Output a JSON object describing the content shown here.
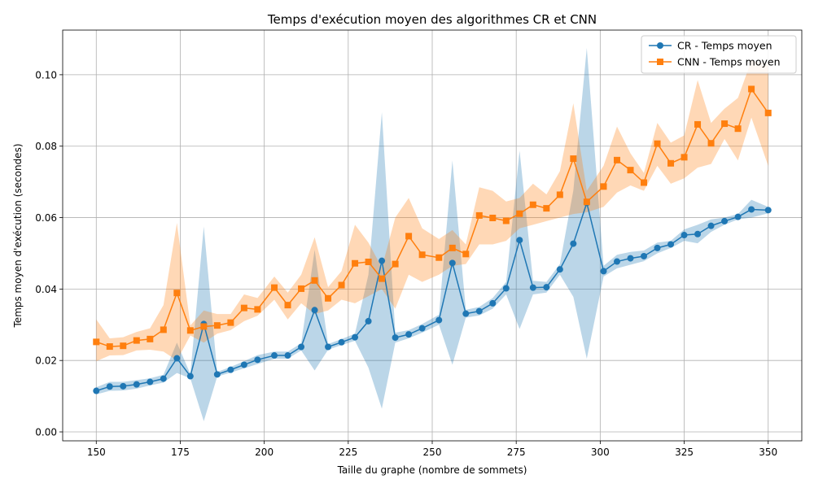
{
  "chart_data": {
    "type": "line",
    "title": "Temps d'exécution moyen des algorithmes CR et CNN",
    "xlabel": "Taille du graphe (nombre de sommets)",
    "ylabel": "Temps moyen d'exécution (secondes)",
    "xlim": [
      140,
      360
    ],
    "ylim": [
      -0.0025,
      0.1125
    ],
    "xticks": [
      150,
      175,
      200,
      225,
      250,
      275,
      300,
      325,
      350
    ],
    "yticks": [
      0.0,
      0.02,
      0.04,
      0.06,
      0.08,
      0.1
    ],
    "ytick_labels": [
      "0.00",
      "0.02",
      "0.04",
      "0.06",
      "0.08",
      "0.10"
    ],
    "grid": true,
    "legend_position": "top-right",
    "x": [
      150,
      154,
      158,
      162,
      166,
      170,
      174,
      178,
      182,
      186,
      190,
      194,
      198,
      203,
      207,
      211,
      215,
      219,
      223,
      227,
      231,
      235,
      239,
      243,
      247,
      252,
      256,
      260,
      264,
      268,
      272,
      276,
      280,
      284,
      288,
      292,
      296,
      301,
      305,
      309,
      313,
      317,
      321,
      325,
      329,
      333,
      337,
      341,
      345,
      350
    ],
    "series": [
      {
        "name": "CR - Temps moyen",
        "color": "#1f77b4",
        "marker": "circle",
        "values": [
          0.0115,
          0.0127,
          0.0128,
          0.0133,
          0.014,
          0.0149,
          0.0206,
          0.0156,
          0.0302,
          0.0161,
          0.0174,
          0.0188,
          0.0202,
          0.0214,
          0.0214,
          0.0238,
          0.0341,
          0.0238,
          0.0251,
          0.0265,
          0.031,
          0.0479,
          0.0264,
          0.0273,
          0.029,
          0.0313,
          0.0473,
          0.0331,
          0.0338,
          0.036,
          0.0402,
          0.0537,
          0.0404,
          0.0405,
          0.0455,
          0.0527,
          0.0641,
          0.045,
          0.0477,
          0.0486,
          0.0492,
          0.0515,
          0.0525,
          0.0551,
          0.0554,
          0.0577,
          0.059,
          0.0602,
          0.0623,
          0.0621
        ],
        "band_lower": [
          0.0105,
          0.0115,
          0.0116,
          0.0121,
          0.013,
          0.0138,
          0.0165,
          0.015,
          0.003,
          0.0155,
          0.0166,
          0.0178,
          0.019,
          0.0205,
          0.0205,
          0.0228,
          0.0172,
          0.023,
          0.0243,
          0.0255,
          0.018,
          0.0065,
          0.025,
          0.0262,
          0.0278,
          0.03,
          0.0188,
          0.032,
          0.0326,
          0.0345,
          0.0385,
          0.0288,
          0.0385,
          0.039,
          0.044,
          0.0378,
          0.0205,
          0.0435,
          0.0458,
          0.0468,
          0.0478,
          0.05,
          0.0515,
          0.0535,
          0.0528,
          0.056,
          0.058,
          0.0595,
          0.06,
          0.0612
        ],
        "band_upper": [
          0.0125,
          0.014,
          0.014,
          0.0145,
          0.015,
          0.016,
          0.025,
          0.0162,
          0.0575,
          0.0168,
          0.0182,
          0.0198,
          0.0215,
          0.0225,
          0.0225,
          0.0248,
          0.051,
          0.0246,
          0.026,
          0.0275,
          0.044,
          0.0895,
          0.0278,
          0.0285,
          0.0302,
          0.0328,
          0.076,
          0.0342,
          0.035,
          0.0375,
          0.042,
          0.0787,
          0.0423,
          0.042,
          0.047,
          0.0676,
          0.1075,
          0.0465,
          0.0496,
          0.0504,
          0.0508,
          0.053,
          0.0535,
          0.0567,
          0.058,
          0.0595,
          0.06,
          0.061,
          0.065,
          0.063
        ]
      },
      {
        "name": "CNN - Temps moyen",
        "color": "#ff7f0e",
        "marker": "square",
        "values": [
          0.0252,
          0.0239,
          0.0241,
          0.0256,
          0.026,
          0.0286,
          0.0389,
          0.0284,
          0.0295,
          0.0298,
          0.0306,
          0.0347,
          0.0343,
          0.0404,
          0.0355,
          0.0401,
          0.0424,
          0.0374,
          0.0411,
          0.0472,
          0.0476,
          0.0429,
          0.047,
          0.0548,
          0.0496,
          0.0488,
          0.0515,
          0.0498,
          0.0606,
          0.0599,
          0.0591,
          0.0611,
          0.0636,
          0.0626,
          0.0664,
          0.0765,
          0.0644,
          0.0687,
          0.0761,
          0.0733,
          0.0698,
          0.0807,
          0.0752,
          0.0769,
          0.0861,
          0.0808,
          0.0863,
          0.0849,
          0.096,
          0.0893
        ],
        "band_lower": [
          0.0198,
          0.0214,
          0.0215,
          0.0228,
          0.023,
          0.0225,
          0.02,
          0.027,
          0.025,
          0.0275,
          0.0285,
          0.031,
          0.0325,
          0.037,
          0.0315,
          0.036,
          0.033,
          0.034,
          0.037,
          0.036,
          0.038,
          0.04,
          0.0345,
          0.044,
          0.042,
          0.044,
          0.0465,
          0.047,
          0.0525,
          0.0525,
          0.0535,
          0.057,
          0.058,
          0.059,
          0.06,
          0.061,
          0.0615,
          0.063,
          0.067,
          0.069,
          0.0675,
          0.0745,
          0.0695,
          0.071,
          0.074,
          0.075,
          0.082,
          0.076,
          0.088,
          0.0745
        ],
        "band_upper": [
          0.0315,
          0.0262,
          0.0265,
          0.028,
          0.029,
          0.0355,
          0.0585,
          0.0298,
          0.034,
          0.033,
          0.033,
          0.0385,
          0.0375,
          0.0435,
          0.039,
          0.044,
          0.0545,
          0.0405,
          0.045,
          0.058,
          0.053,
          0.046,
          0.06,
          0.0655,
          0.057,
          0.054,
          0.0565,
          0.0525,
          0.0685,
          0.0675,
          0.0645,
          0.0655,
          0.0695,
          0.0665,
          0.073,
          0.092,
          0.0675,
          0.0745,
          0.0855,
          0.078,
          0.0725,
          0.0865,
          0.081,
          0.083,
          0.0985,
          0.0865,
          0.0905,
          0.0935,
          0.104,
          0.103
        ]
      }
    ]
  }
}
